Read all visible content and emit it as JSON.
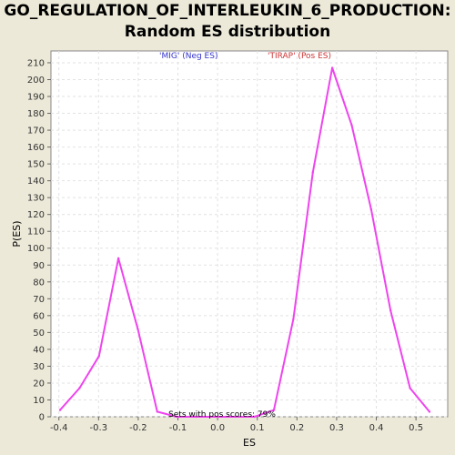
{
  "chart_data": {
    "type": "line",
    "title": "GO_REGULATION_OF_INTERLEUKIN_6_PRODUCTION:",
    "subtitle": "Random ES distribution",
    "xlabel": "ES",
    "ylabel": "P(ES)",
    "xlim": [
      -0.42,
      0.58
    ],
    "ylim": [
      0,
      217
    ],
    "x_ticks": [
      -0.4,
      -0.3,
      -0.2,
      -0.1,
      0.0,
      0.1,
      0.2,
      0.3,
      0.4,
      0.5
    ],
    "x_tick_labels": [
      "-0.4",
      "-0.3",
      "-0.2",
      "-0.1",
      "0.0",
      "0.1",
      "0.2",
      "0.3",
      "0.4",
      "0.5"
    ],
    "y_ticks": [
      0,
      10,
      20,
      30,
      40,
      50,
      60,
      70,
      80,
      90,
      100,
      110,
      120,
      130,
      140,
      150,
      160,
      170,
      180,
      190,
      200,
      210
    ],
    "y_tick_labels": [
      "0",
      "10",
      "20",
      "30",
      "40",
      "50",
      "60",
      "70",
      "80",
      "90",
      "100",
      "110",
      "120",
      "130",
      "140",
      "150",
      "160",
      "170",
      "180",
      "190",
      "200",
      "210"
    ],
    "grid": true,
    "series": [
      {
        "color": "#ee44ee",
        "x": [
          -0.397,
          -0.348,
          -0.299,
          -0.25,
          -0.201,
          -0.152,
          -0.103,
          -0.054,
          -0.005,
          0.044,
          0.093,
          0.142,
          0.191,
          0.24,
          0.289,
          0.338,
          0.387,
          0.436,
          0.485,
          0.534
        ],
        "y": [
          4,
          17,
          36,
          94,
          52,
          3,
          0,
          0,
          0,
          0,
          0,
          4,
          58,
          145,
          207,
          173,
          123,
          63,
          17,
          3
        ]
      }
    ],
    "legend": [
      {
        "label": "'MIG' (Neg ES)",
        "color": "#3333cc"
      },
      {
        "label": "'TIRAP' (Pos ES)",
        "color": "#cc3333"
      }
    ],
    "legend_position": "top-center",
    "annotation": "Sets with pos scores: 79%"
  }
}
